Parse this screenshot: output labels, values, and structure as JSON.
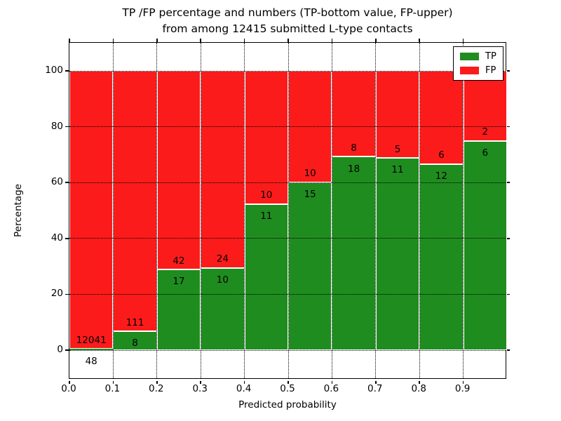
{
  "figure": {
    "title_line1": "TP /FP percentage and numbers (TP-bottom value, FP-upper)",
    "title_line2": "from among 12415 submitted L-type contacts"
  },
  "chart_data": {
    "type": "bar",
    "subtype": "stacked-percentage-histogram",
    "title": "TP /FP percentage and numbers (TP-bottom value, FP-upper) from among 12415 submitted L-type contacts",
    "xlabel": "Predicted probability",
    "ylabel": "Percentage",
    "xlim": [
      0.0,
      1.0
    ],
    "ylim": [
      -10.5,
      110
    ],
    "x_tick_labels": [
      "0.0",
      "0.1",
      "0.2",
      "0.3",
      "0.4",
      "0.5",
      "0.6",
      "0.7",
      "0.8",
      "0.9"
    ],
    "y_tick_labels": [
      "0",
      "20",
      "40",
      "60",
      "80",
      "100"
    ],
    "grid": "dotted, both axes",
    "colors": {
      "tp": "#1f8c1f",
      "fp": "#fb1b1b"
    },
    "legend": {
      "position": "upper right",
      "entries": [
        {
          "label": "TP",
          "color": "#1f8c1f"
        },
        {
          "label": "FP",
          "color": "#fb1b1b"
        }
      ]
    },
    "bins": [
      {
        "x_start": 0.0,
        "x_end": 0.1,
        "tp": 48,
        "fp": 12041,
        "tp_pct": 0.4
      },
      {
        "x_start": 0.1,
        "x_end": 0.2,
        "tp": 8,
        "fp": 111,
        "tp_pct": 6.72
      },
      {
        "x_start": 0.2,
        "x_end": 0.3,
        "tp": 17,
        "fp": 42,
        "tp_pct": 28.81
      },
      {
        "x_start": 0.3,
        "x_end": 0.4,
        "tp": 10,
        "fp": 24,
        "tp_pct": 29.41
      },
      {
        "x_start": 0.4,
        "x_end": 0.5,
        "tp": 11,
        "fp": 10,
        "tp_pct": 52.38
      },
      {
        "x_start": 0.5,
        "x_end": 0.6,
        "tp": 15,
        "fp": 10,
        "tp_pct": 60.0
      },
      {
        "x_start": 0.6,
        "x_end": 0.7,
        "tp": 18,
        "fp": 8,
        "tp_pct": 69.23
      },
      {
        "x_start": 0.7,
        "x_end": 0.8,
        "tp": 11,
        "fp": 5,
        "tp_pct": 68.75
      },
      {
        "x_start": 0.8,
        "x_end": 0.9,
        "tp": 12,
        "fp": 6,
        "tp_pct": 66.67
      },
      {
        "x_start": 0.9,
        "x_end": 1.0,
        "tp": 6,
        "fp": 2,
        "tp_pct": 75.0
      }
    ]
  }
}
